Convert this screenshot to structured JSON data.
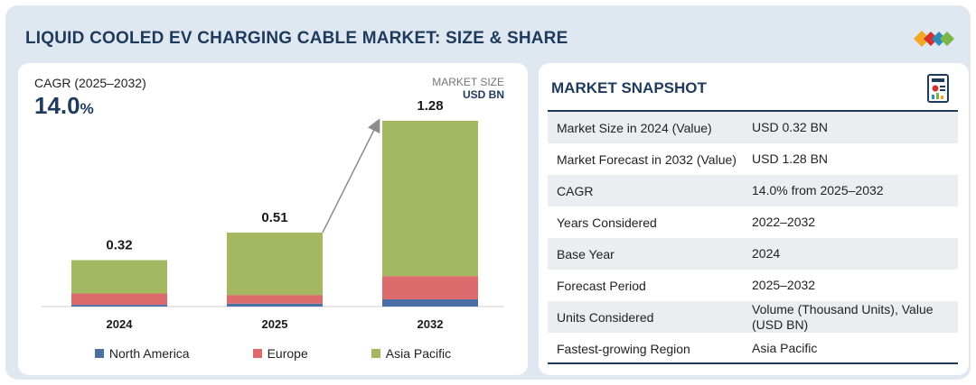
{
  "header": {
    "title": "LIQUID COOLED EV CHARGING CABLE MARKET: SIZE & SHARE",
    "logo_colors": [
      "#f5a623",
      "#d0312d",
      "#2e8bc0",
      "#7ab648"
    ]
  },
  "summary": {
    "cagr_label": "CAGR (2025–2032)",
    "cagr_number": "14.0",
    "cagr_symbol": "%",
    "market_size_label": "MARKET SIZE",
    "market_size_unit": "USD BN"
  },
  "chart_data": {
    "type": "bar",
    "stacked": true,
    "categories": [
      "2024",
      "2025",
      "2032"
    ],
    "totals": [
      0.32,
      0.51,
      1.28
    ],
    "total_labels": [
      "0.32",
      "0.51",
      "1.28"
    ],
    "series": [
      {
        "name": "North America",
        "color": "#4a6fa5",
        "values": [
          0.012,
          0.02,
          0.05
        ]
      },
      {
        "name": "Europe",
        "color": "#dd6b6e",
        "values": [
          0.078,
          0.06,
          0.16
        ]
      },
      {
        "name": "Asia Pacific",
        "color": "#a3b861",
        "values": [
          0.23,
          0.43,
          1.07
        ]
      }
    ],
    "ylim": [
      0,
      1.28
    ],
    "growth_arrow": {
      "from": "2025",
      "to": "2032"
    }
  },
  "snapshot": {
    "title": "MARKET SNAPSHOT",
    "rows": [
      {
        "label": "Market Size in 2024 (Value)",
        "value": "USD 0.32 BN"
      },
      {
        "label": "Market Forecast in 2032 (Value)",
        "value": "USD 1.28 BN"
      },
      {
        "label": "CAGR",
        "value": "14.0% from 2025–2032"
      },
      {
        "label": "Years Considered",
        "value": "2022–2032"
      },
      {
        "label": "Base Year",
        "value": "2024"
      },
      {
        "label": "Forecast Period",
        "value": "2025–2032"
      },
      {
        "label": "Units Considered",
        "value": "Volume (Thousand Units), Value (USD BN)"
      },
      {
        "label": "Fastest-growing Region",
        "value": "Asia Pacific"
      }
    ]
  }
}
